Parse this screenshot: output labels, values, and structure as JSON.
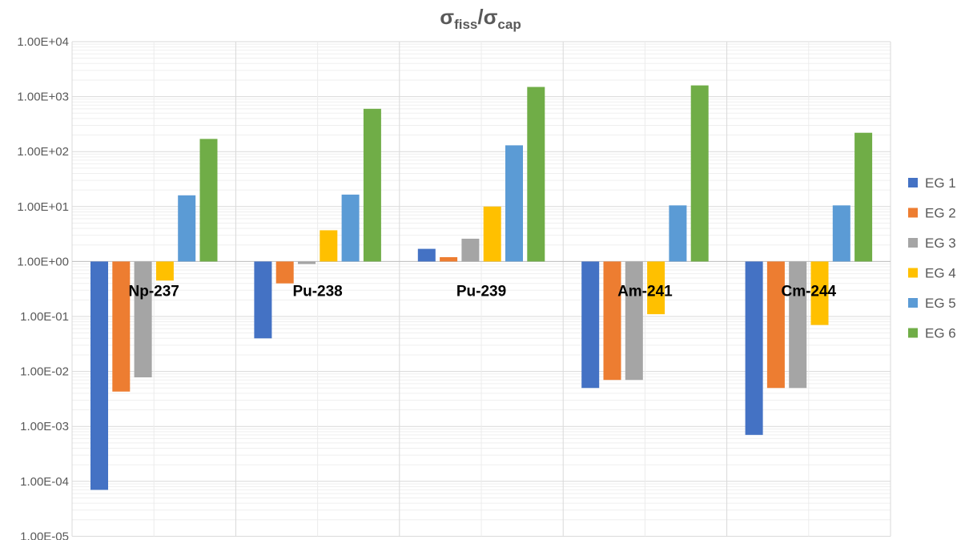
{
  "chart_data": {
    "type": "bar",
    "title": {
      "main": "σ",
      "sub1": "fiss",
      "slash": "/",
      "main2": "σ",
      "sub2": "cap"
    },
    "y_scale": "log",
    "baseline": 1,
    "ylim": [
      1e-05,
      10000
    ],
    "y_ticks": [
      "1.00E-05",
      "1.00E-04",
      "1.00E-03",
      "1.00E-02",
      "1.00E-01",
      "1.00E+00",
      "1.00E+01",
      "1.00E+02",
      "1.00E+03",
      "1.00E+04"
    ],
    "categories": [
      "Np-237",
      "Pu-238",
      "Pu-239",
      "Am-241",
      "Cm-244"
    ],
    "legend_position": "right",
    "series": [
      {
        "name": "EG 1",
        "color": "#4472C4",
        "values": [
          7e-05,
          0.04,
          1.7,
          0.005,
          0.0007
        ]
      },
      {
        "name": "EG 2",
        "color": "#ED7D31",
        "values": [
          0.0043,
          0.4,
          1.2,
          0.007,
          0.005
        ]
      },
      {
        "name": "EG 3",
        "color": "#A5A5A5",
        "values": [
          0.0078,
          0.9,
          2.6,
          0.007,
          0.005
        ]
      },
      {
        "name": "EG 4",
        "color": "#FFC000",
        "values": [
          0.45,
          3.7,
          10,
          0.11,
          0.07
        ]
      },
      {
        "name": "EG 5",
        "color": "#5B9BD5",
        "values": [
          16,
          16.5,
          130,
          10.5,
          10.5
        ]
      },
      {
        "name": "EG 6",
        "color": "#70AD47",
        "values": [
          170,
          600,
          1500,
          1600,
          220
        ]
      }
    ]
  }
}
